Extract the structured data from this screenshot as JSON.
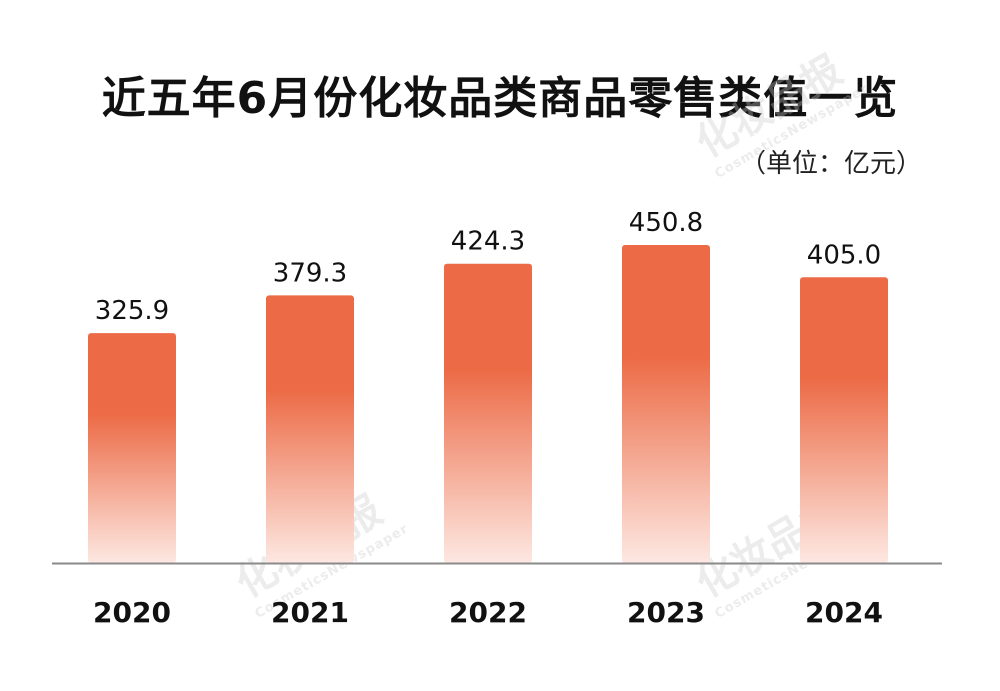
{
  "header": {
    "title": "近五年6月份化妆品类商品零售类值一览",
    "unit": "（单位：亿元）"
  },
  "watermark": {
    "text": "化妆品报",
    "sub": "CosmeticsNewspaper"
  },
  "colors": {
    "bar_top": "#ec6a45",
    "bar_bottom": "#fde8e2",
    "baseline": "#8a8a8a",
    "text": "#111111"
  },
  "chart_data": {
    "type": "bar",
    "categories": [
      "2020",
      "2021",
      "2022",
      "2023",
      "2024"
    ],
    "values": [
      325.9,
      379.3,
      424.3,
      450.8,
      405.0
    ],
    "value_labels": [
      "325.9",
      "379.3",
      "424.3",
      "450.8",
      "405.0"
    ],
    "title": "近五年6月份化妆品类商品零售类值一览",
    "xlabel": "",
    "ylabel": "",
    "unit": "（单位：亿元）",
    "ylim": [
      0,
      450.8
    ],
    "grid": false,
    "legend": "none"
  }
}
